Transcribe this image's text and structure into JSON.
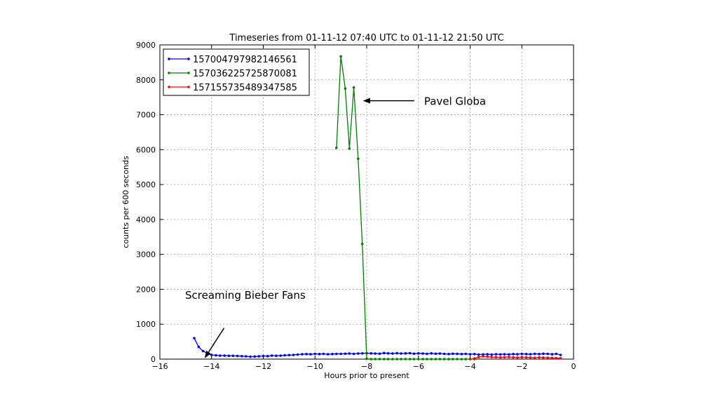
{
  "chart_data": {
    "type": "line",
    "title": "Timeseries from 01-11-12 07:40 UTC to 01-11-12 21:50 UTC",
    "xlabel": "Hours prior to present",
    "ylabel": "counts per 600 seconds",
    "xlim": [
      -16,
      0
    ],
    "ylim": [
      0,
      9000
    ],
    "xticks": [
      -16,
      -14,
      -12,
      -10,
      -8,
      -6,
      -4,
      -2,
      0
    ],
    "yticks": [
      0,
      1000,
      2000,
      3000,
      4000,
      5000,
      6000,
      7000,
      8000,
      9000
    ],
    "xtick_labels": [
      "−16",
      "−14",
      "−12",
      "−10",
      "−8",
      "−6",
      "−4",
      "−2",
      "0"
    ],
    "ytick_labels": [
      "0",
      "1000",
      "2000",
      "3000",
      "4000",
      "5000",
      "6000",
      "7000",
      "8000",
      "9000"
    ],
    "grid": true,
    "legend_position": "top-left",
    "series": [
      {
        "name": "157004797982146561",
        "color": "#0000ff",
        "x": [
          -14.67,
          -14.5,
          -14.33,
          -14.17,
          -14.0,
          -13.83,
          -13.67,
          -13.5,
          -13.33,
          -13.17,
          -13.0,
          -12.83,
          -12.67,
          -12.5,
          -12.33,
          -12.17,
          -12.0,
          -11.83,
          -11.67,
          -11.5,
          -11.33,
          -11.17,
          -11.0,
          -10.83,
          -10.67,
          -10.5,
          -10.33,
          -10.17,
          -10.0,
          -9.83,
          -9.67,
          -9.5,
          -9.33,
          -9.17,
          -9.0,
          -8.83,
          -8.67,
          -8.5,
          -8.33,
          -8.17,
          -8.0,
          -7.83,
          -7.67,
          -7.5,
          -7.33,
          -7.17,
          -7.0,
          -6.83,
          -6.67,
          -6.5,
          -6.33,
          -6.17,
          -6.0,
          -5.83,
          -5.67,
          -5.5,
          -5.33,
          -5.17,
          -5.0,
          -4.83,
          -4.67,
          -4.5,
          -4.33,
          -4.17,
          -4.0,
          -3.83,
          -3.67,
          -3.5,
          -3.33,
          -3.17,
          -3.0,
          -2.83,
          -2.67,
          -2.5,
          -2.33,
          -2.17,
          -2.0,
          -1.83,
          -1.67,
          -1.5,
          -1.33,
          -1.17,
          -1.0,
          -0.83,
          -0.67,
          -0.5
        ],
        "y": [
          600,
          350,
          230,
          170,
          120,
          110,
          100,
          100,
          95,
          95,
          90,
          85,
          80,
          70,
          75,
          80,
          90,
          85,
          100,
          95,
          100,
          110,
          115,
          120,
          130,
          140,
          145,
          140,
          150,
          145,
          150,
          140,
          145,
          150,
          150,
          155,
          160,
          150,
          160,
          165,
          170,
          165,
          160,
          155,
          175,
          165,
          160,
          170,
          160,
          165,
          170,
          155,
          165,
          160,
          150,
          165,
          155,
          160,
          150,
          145,
          155,
          150,
          145,
          150,
          140,
          145,
          130,
          135,
          140,
          130,
          140,
          135,
          140,
          135,
          145,
          140,
          150,
          145,
          140,
          150,
          145,
          155,
          150,
          140,
          150,
          120
        ]
      },
      {
        "name": "157036225725870081",
        "color": "#008000",
        "x": [
          -9.17,
          -9.0,
          -8.83,
          -8.67,
          -8.5,
          -8.33,
          -8.17,
          -8.0,
          -7.83,
          -7.67,
          -7.5,
          -7.33,
          -7.17,
          -7.0,
          -6.83,
          -6.67,
          -6.5,
          -6.33,
          -6.17,
          -6.0,
          -5.83,
          -5.67,
          -5.5,
          -5.33,
          -5.17,
          -5.0,
          -4.83,
          -4.67,
          -4.5,
          -4.33,
          -4.17,
          -4.0,
          -3.83
        ],
        "y": [
          6050,
          8670,
          7750,
          6030,
          7780,
          5740,
          3300,
          10,
          0,
          0,
          0,
          0,
          0,
          0,
          0,
          0,
          0,
          0,
          0,
          0,
          0,
          0,
          0,
          0,
          0,
          0,
          0,
          0,
          0,
          0,
          0,
          0,
          0
        ]
      },
      {
        "name": "157155735489347585",
        "color": "#ff0000",
        "x": [
          -4.0,
          -3.83,
          -3.67,
          -3.5,
          -3.33,
          -3.17,
          -3.0,
          -2.83,
          -2.67,
          -2.5,
          -2.33,
          -2.17,
          -2.0,
          -1.83,
          -1.67,
          -1.5,
          -1.33,
          -1.17,
          -1.0,
          -0.83,
          -0.67,
          -0.5
        ],
        "y": [
          0,
          20,
          60,
          80,
          70,
          60,
          55,
          50,
          55,
          60,
          50,
          45,
          55,
          50,
          45,
          40,
          50,
          45,
          40,
          35,
          30,
          25
        ]
      }
    ],
    "annotations": [
      {
        "text": "Pavel Globa",
        "target_x": -8.33,
        "target_y": 7400
      },
      {
        "text": "Screaming Bieber Fans",
        "target_x": -14.33,
        "target_y": 450
      }
    ]
  }
}
